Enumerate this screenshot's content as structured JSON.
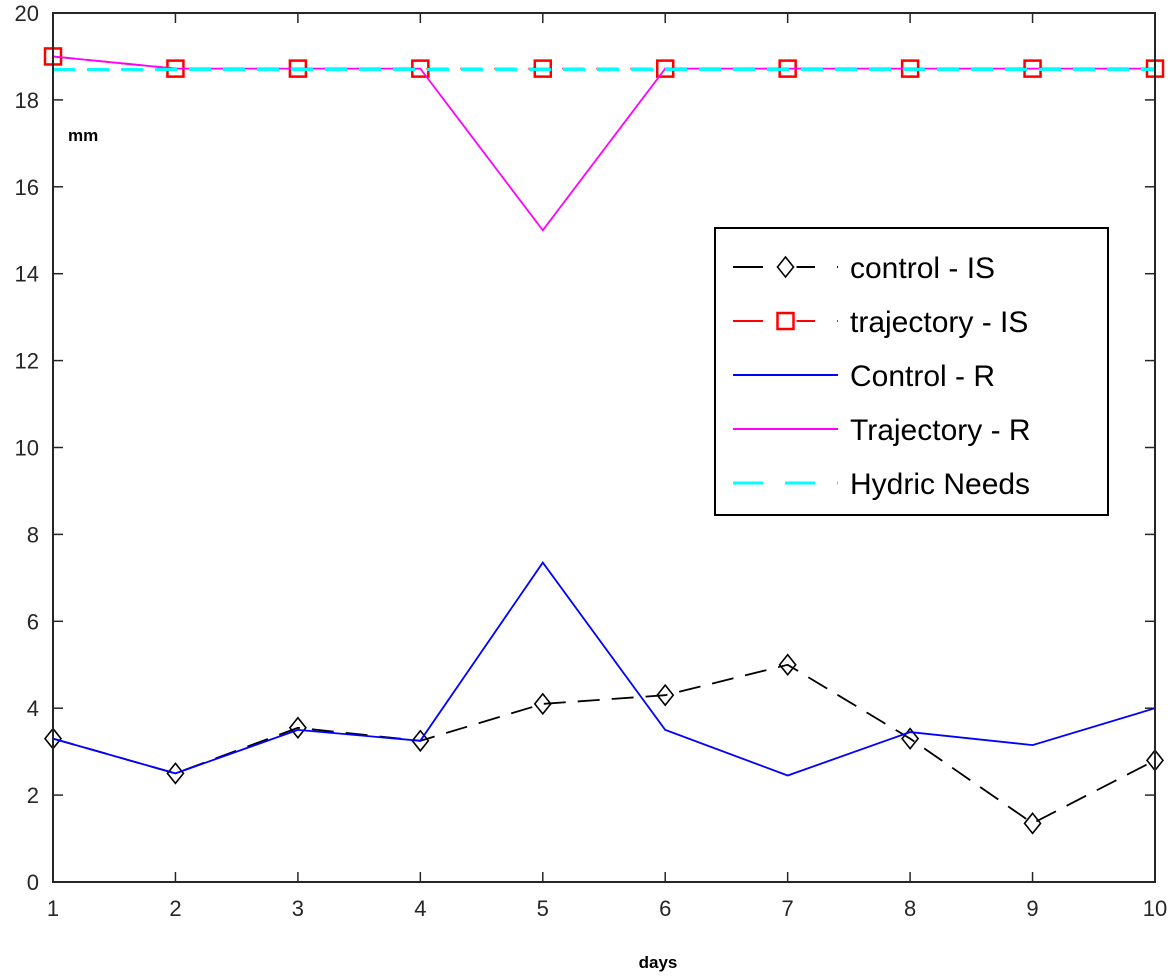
{
  "chart_data": {
    "type": "line",
    "title": "",
    "xlabel": "days",
    "ylabel": "mm",
    "xlim": [
      1,
      10
    ],
    "ylim": [
      0,
      20
    ],
    "x_ticks": [
      1,
      2,
      3,
      4,
      5,
      6,
      7,
      8,
      9,
      10
    ],
    "y_ticks": [
      0,
      2,
      4,
      6,
      8,
      10,
      12,
      14,
      16,
      18,
      20
    ],
    "legend_position": "right",
    "x": [
      1,
      2,
      3,
      4,
      5,
      6,
      7,
      8,
      9,
      10
    ],
    "series": [
      {
        "name": "control - IS",
        "color": "#000000",
        "dash": "dashed",
        "marker": "diamond",
        "values": [
          3.3,
          2.5,
          3.55,
          3.25,
          4.1,
          4.3,
          5.0,
          3.3,
          1.35,
          2.8
        ]
      },
      {
        "name": "trajectory - IS",
        "color": "#ff0000",
        "dash": "dashed",
        "marker": "square",
        "values": [
          19.0,
          18.72,
          18.72,
          18.72,
          18.72,
          18.72,
          18.72,
          18.72,
          18.72,
          18.72
        ]
      },
      {
        "name": "Control - R",
        "color": "#0000ff",
        "dash": "solid",
        "marker": "none",
        "values": [
          3.3,
          2.5,
          3.5,
          3.25,
          7.35,
          3.5,
          2.45,
          3.45,
          3.15,
          4.0
        ]
      },
      {
        "name": "Trajectory - R",
        "color": "#ff00ff",
        "dash": "solid",
        "marker": "none",
        "values": [
          19.0,
          18.72,
          18.72,
          18.72,
          15.0,
          18.72,
          18.72,
          18.72,
          18.72,
          18.72
        ]
      },
      {
        "name": "Hydric Needs",
        "color": "#00ffff",
        "dash": "dashed",
        "marker": "none",
        "values": [
          18.7,
          18.7,
          18.7,
          18.7,
          18.7,
          18.7,
          18.7,
          18.7,
          18.7,
          18.7
        ]
      }
    ]
  }
}
